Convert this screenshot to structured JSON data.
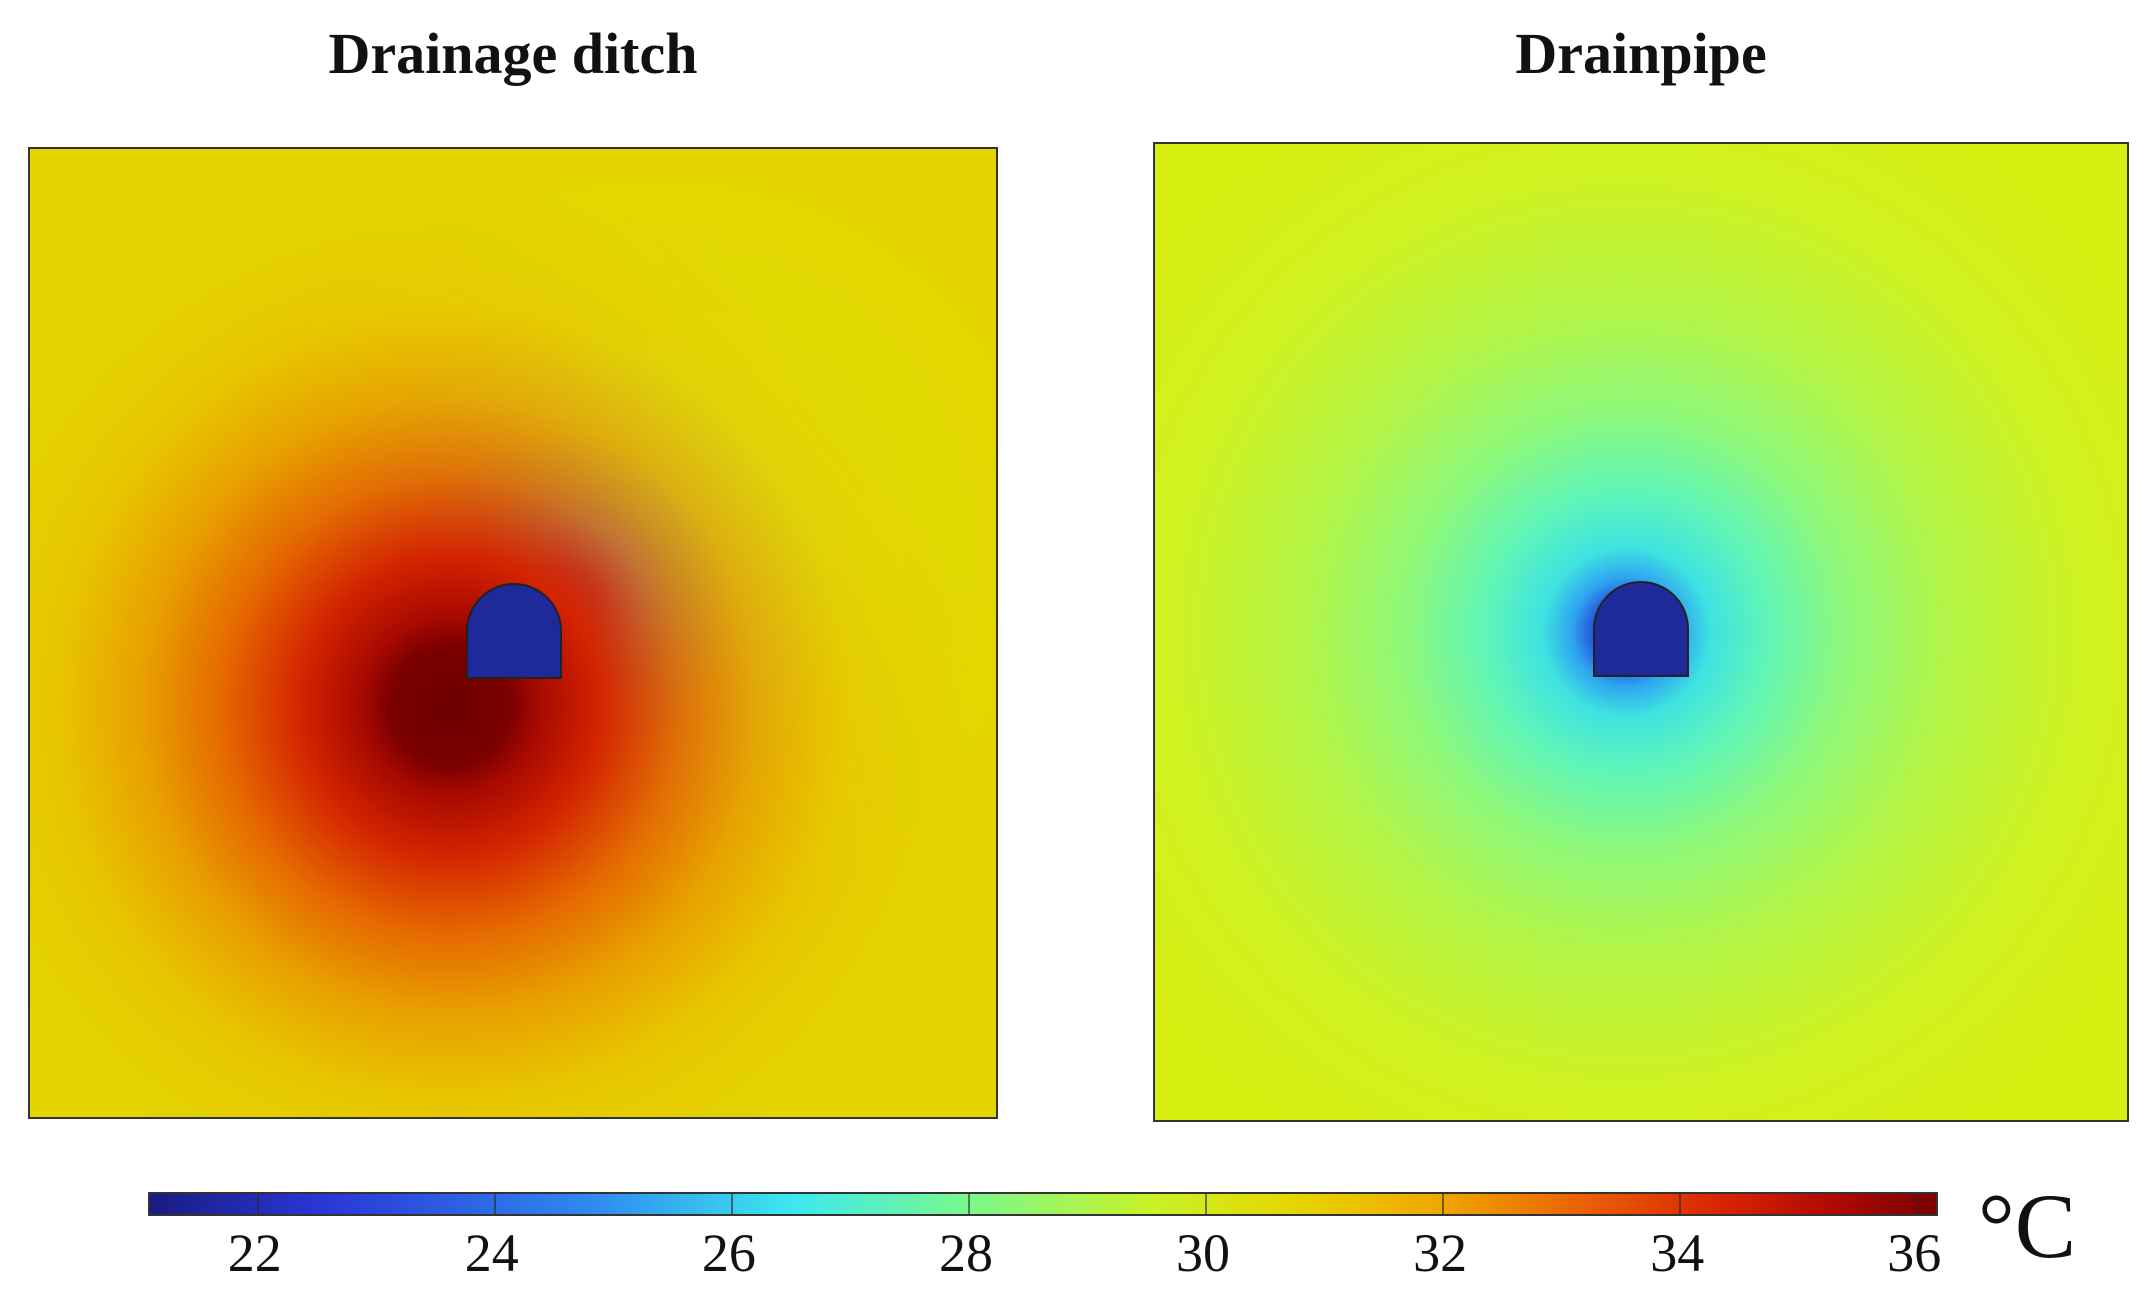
{
  "panels": {
    "left_title": "Drainage ditch",
    "right_title": "Drainpipe"
  },
  "colorbar": {
    "ticks": [
      "22",
      "24",
      "26",
      "28",
      "30",
      "32",
      "34",
      "36"
    ],
    "tick_values": [
      22,
      24,
      26,
      28,
      30,
      32,
      34,
      36
    ],
    "min": 21.1,
    "max": 36.2,
    "unit": "°C",
    "colormap": "rainbow (blue-cyan-green-yellow-red)"
  },
  "colors": {
    "cold": "#1f2a9a",
    "hot": "#7a0000",
    "background_left": "#e4d400",
    "background_right": "#d8ef12"
  }
}
